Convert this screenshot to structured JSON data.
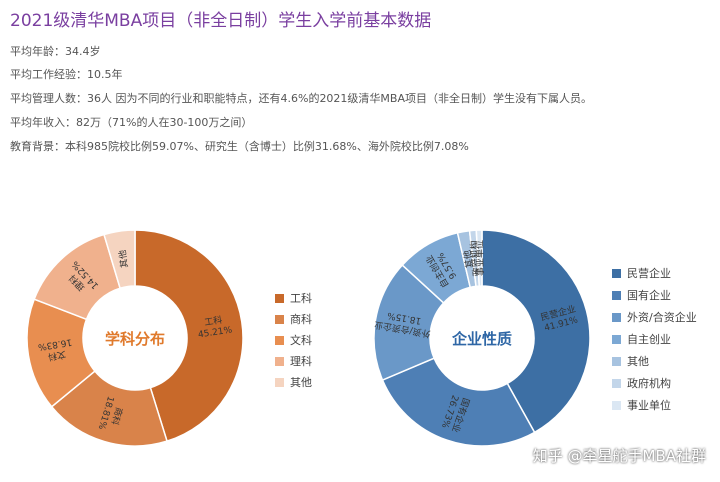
{
  "header": {
    "title": "2021级清华MBA项目（非全日制）学生入学前基本数据",
    "lines": [
      "平均年龄：34.4岁",
      "平均工作经验：10.5年",
      "平均管理人数：36人 因为不同的行业和职能特点，还有4.6%的2021级清华MBA项目（非全日制）学生没有下属人员。",
      "平均年收入：82万（71%的人在30-100万之间）",
      "教育背景：本科985院校比例59.07%、研究生（含博士）比例31.68%、海外院校比例7.08%"
    ]
  },
  "chart_data": [
    {
      "type": "pie",
      "title": "学科分布",
      "categories": [
        "工科",
        "商科",
        "文科",
        "理科",
        "其他"
      ],
      "values": [
        45.21,
        18.81,
        16.83,
        14.52,
        4.63
      ],
      "labels": [
        "45.21%",
        "18.81%",
        "16.83%",
        "14.52%",
        ""
      ],
      "colors": [
        "#c8692a",
        "#d9834a",
        "#e88e50",
        "#f0b18d",
        "#f5d4c0"
      ],
      "legend": "right"
    },
    {
      "type": "pie",
      "title": "企业性质",
      "categories": [
        "民营企业",
        "国有企业",
        "外资/合资企业",
        "自主创业",
        "其他",
        "政府机构",
        "事业单位"
      ],
      "values": [
        41.91,
        26.73,
        18.15,
        9.57,
        1.8,
        1.0,
        0.84
      ],
      "labels": [
        "41.91%",
        "26.73%",
        "18.15%",
        "9.57%",
        "",
        "",
        ""
      ],
      "colors": [
        "#3d6fa4",
        "#4e7fb5",
        "#6a98c8",
        "#7ca8d4",
        "#a7c3e0",
        "#c3d6ea",
        "#dbe7f3"
      ],
      "legend": "right"
    }
  ],
  "watermark": "知乎 @牵星舵手MBA社群"
}
